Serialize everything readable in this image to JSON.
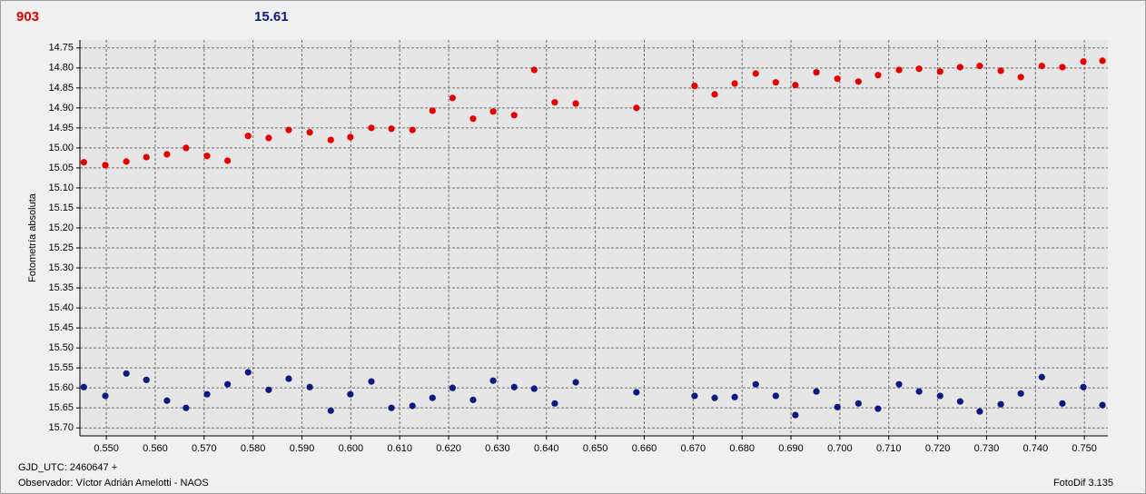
{
  "chart_data": {
    "type": "scatter",
    "annotations": [
      {
        "text": "903",
        "color": "#e00000"
      },
      {
        "text": "15.61",
        "color": "#0a1a80"
      },
      {
        "text": "GJD_UTC: 2460647 +",
        "color": "#000000"
      },
      {
        "text": "Observador: Víctor Adrián Amelotti - NAOS",
        "color": "#000000"
      },
      {
        "text": "FotoDif 3.135",
        "color": "#000000"
      }
    ],
    "y_label": "Fotometría absoluta",
    "y_inverted": true,
    "grid": true,
    "xlim": [
      0.5446,
      0.7548
    ],
    "ylim": [
      14.73,
      15.72
    ],
    "xticks": [
      {
        "value": 0.55,
        "label": "0.550"
      },
      {
        "value": 0.56,
        "label": "0.560"
      },
      {
        "value": 0.57,
        "label": "0.570"
      },
      {
        "value": 0.58,
        "label": "0.580"
      },
      {
        "value": 0.59,
        "label": "0.590"
      },
      {
        "value": 0.6,
        "label": "0.600"
      },
      {
        "value": 0.61,
        "label": "0.610"
      },
      {
        "value": 0.62,
        "label": "0.620"
      },
      {
        "value": 0.63,
        "label": "0.630"
      },
      {
        "value": 0.64,
        "label": "0.640"
      },
      {
        "value": 0.65,
        "label": "0.650"
      },
      {
        "value": 0.66,
        "label": "0.660"
      },
      {
        "value": 0.67,
        "label": "0.670"
      },
      {
        "value": 0.68,
        "label": "0.680"
      },
      {
        "value": 0.69,
        "label": "0.690"
      },
      {
        "value": 0.7,
        "label": "0.700"
      },
      {
        "value": 0.71,
        "label": "0.710"
      },
      {
        "value": 0.72,
        "label": "0.720"
      },
      {
        "value": 0.73,
        "label": "0.730"
      },
      {
        "value": 0.74,
        "label": "0.740"
      },
      {
        "value": 0.75,
        "label": "0.750"
      }
    ],
    "yticks": [
      14.75,
      {
        "value": 14.8,
        "label": "14.80"
      },
      14.85,
      {
        "value": 14.9,
        "label": "14.90"
      },
      14.95,
      {
        "value": 15.0,
        "label": "15.00"
      },
      15.05,
      {
        "value": 15.1,
        "label": "15.10"
      },
      15.15,
      {
        "value": 15.2,
        "label": "15.20"
      },
      15.25,
      {
        "value": 15.3,
        "label": "15.30"
      },
      15.35,
      {
        "value": 15.4,
        "label": "15.40"
      },
      15.45,
      {
        "value": 15.5,
        "label": "15.50"
      },
      15.55,
      {
        "value": 15.6,
        "label": "15.60"
      },
      15.65,
      {
        "value": 15.7,
        "label": "15.70"
      }
    ],
    "x": [
      0.5454,
      0.5498,
      0.5541,
      0.5582,
      0.5624,
      0.5663,
      0.5706,
      0.5748,
      0.579,
      0.5832,
      0.5873,
      0.5916,
      0.5959,
      0.5999,
      0.6042,
      0.6083,
      0.6126,
      0.6167,
      0.6208,
      0.625,
      0.6291,
      0.6334,
      0.6375,
      0.6417,
      0.646,
      0.6584,
      0.6703,
      0.6744,
      0.6785,
      0.6828,
      0.6869,
      0.6909,
      0.6952,
      0.6995,
      0.7038,
      0.7078,
      0.7121,
      0.7162,
      0.7205,
      0.7246,
      0.7286,
      0.7329,
      0.737,
      0.7413,
      0.7455,
      0.7498,
      0.7537
    ],
    "series": [
      {
        "color": "#e60000",
        "values": [
          15.036,
          15.043,
          15.034,
          15.023,
          15.016,
          15.0,
          15.02,
          15.032,
          14.97,
          14.975,
          14.955,
          14.961,
          14.98,
          14.973,
          14.95,
          14.952,
          14.955,
          14.907,
          14.875,
          14.927,
          14.909,
          14.918,
          14.805,
          14.886,
          14.889,
          14.9,
          14.845,
          14.866,
          14.839,
          14.814,
          14.836,
          14.843,
          14.811,
          14.827,
          14.834,
          14.818,
          14.805,
          14.802,
          14.809,
          14.798,
          14.795,
          14.807,
          14.823,
          14.795,
          14.798,
          14.784,
          14.782
        ]
      },
      {
        "color": "#0a1a80",
        "values": [
          15.598,
          15.62,
          15.564,
          15.58,
          15.632,
          15.65,
          15.616,
          15.591,
          15.561,
          15.605,
          15.577,
          15.598,
          15.657,
          15.616,
          15.584,
          15.65,
          15.645,
          15.625,
          15.6,
          15.63,
          15.582,
          15.598,
          15.602,
          15.639,
          15.586,
          15.611,
          15.62,
          15.625,
          15.623,
          15.591,
          15.62,
          15.668,
          15.609,
          15.648,
          15.639,
          15.652,
          15.591,
          15.609,
          15.62,
          15.634,
          15.659,
          15.641,
          15.614,
          15.573,
          15.639,
          15.598,
          15.643
        ]
      }
    ]
  }
}
